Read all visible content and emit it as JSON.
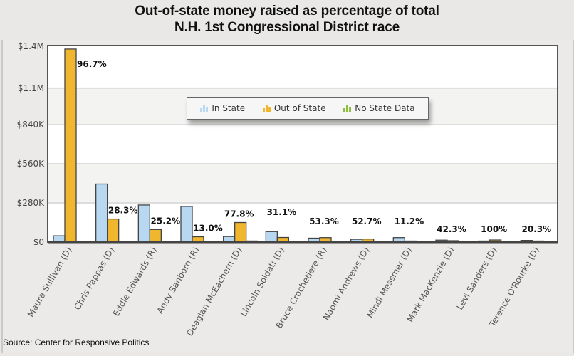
{
  "chart_data": {
    "type": "bar",
    "title": "Out-of-state money raised as percentage of total",
    "subtitle": "N.H. 1st Congressional District race",
    "xlabel": "",
    "ylabel": "",
    "ylim": [
      0,
      1400000
    ],
    "grid": true,
    "legend_position": "top-center",
    "y_ticks": [
      0,
      280000,
      560000,
      840000,
      1100000,
      1400000
    ],
    "y_tick_labels": [
      "$0",
      "$280K",
      "$560K",
      "$840K",
      "$1.1M",
      "$1.4M"
    ],
    "categories": [
      "Maura Sullivan (D)",
      "Chris Pappas (D)",
      "Eddie Edwards (R)",
      "Andy Sanborn (R)",
      "Deaglan McEachern (D)",
      "Lincoln Soldati (D)",
      "Bruce Crochetiere (R)",
      "Naomi Andrews (D)",
      "Mindi Messmer (D)",
      "Mark MacKenzie (D)",
      "Levi Sanders (D)",
      "Terence O'Rourke (D)"
    ],
    "series": [
      {
        "name": "In State",
        "color": "#b7d8f0",
        "values": [
          45000,
          415000,
          265000,
          255000,
          40000,
          75000,
          28000,
          20000,
          32000,
          14000,
          0,
          12000
        ]
      },
      {
        "name": "Out of State",
        "color": "#f0b62e",
        "values": [
          1380000,
          165000,
          90000,
          38000,
          140000,
          33000,
          32000,
          22000,
          4000,
          10000,
          15000,
          3000
        ]
      },
      {
        "name": "No State Data",
        "color": "#8cbf3f",
        "values": [
          3000,
          3000,
          2000,
          2000,
          10000,
          2000,
          2000,
          2000,
          2000,
          2000,
          2000,
          2000
        ]
      }
    ],
    "annotations": [
      "96.7%",
      "28.3%",
      "25.2%",
      "13.0%",
      "77.8%",
      "31.1%",
      "53.3%",
      "52.7%",
      "11.2%",
      "42.3%",
      "100%",
      "20.3%"
    ]
  },
  "source": "Source: Center for Responsive Politics",
  "legend": [
    {
      "label": "In State",
      "icon": "bar-chart-icon",
      "color": "#b7d8f0"
    },
    {
      "label": "Out of State",
      "icon": "bar-chart-icon",
      "color": "#f0b62e"
    },
    {
      "label": "No State Data",
      "icon": "bar-chart-icon",
      "color": "#8cbf3f"
    }
  ]
}
